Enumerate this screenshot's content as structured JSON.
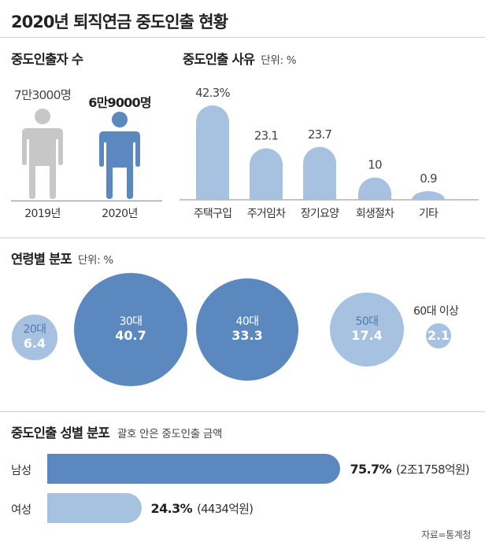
{
  "title": "2020년 퇴직연금 중도인출 현황",
  "source": "자료=통계청",
  "colors": {
    "dark_blue": "#5b89bf",
    "light_blue": "#a7c2e0",
    "gray": "#c7c7c7"
  },
  "count_section": {
    "title": "중도인출자 수",
    "items": [
      {
        "year": "2019년",
        "label": "7만3000명",
        "value": 73000,
        "icon": "person-icon",
        "color": "#c7c7c7"
      },
      {
        "year": "2020년",
        "label": "6만9000명",
        "value": 69000,
        "icon": "person-icon",
        "color": "#5b89bf"
      }
    ]
  },
  "chart_data": [
    {
      "type": "bar",
      "title": "중도인출 사유",
      "unit": "단위: %",
      "categories": [
        "주택구입",
        "주거임차",
        "장기요양",
        "회생절차",
        "기타"
      ],
      "values": [
        42.3,
        23.1,
        23.7,
        10,
        0.9
      ],
      "value_labels": [
        "42.3%",
        "23.1",
        "23.7",
        "10",
        "0.9"
      ]
    },
    {
      "type": "scatter",
      "title": "연령별 분포",
      "unit": "단위: %",
      "categories": [
        "20대",
        "30대",
        "40대",
        "50대",
        "60대 이상"
      ],
      "values": [
        6.4,
        40.7,
        33.3,
        17.4,
        2.1
      ],
      "value_labels": [
        "6.4",
        "40.7",
        "33.3",
        "17.4",
        "2.1"
      ]
    },
    {
      "type": "bar",
      "title": "중도인출 성별 분포",
      "note": "괄호 안은 중도인출 금액",
      "categories": [
        "남성",
        "여성"
      ],
      "values": [
        75.7,
        24.3
      ],
      "value_labels": [
        "75.7%",
        "24.3%"
      ],
      "amounts": [
        "(2조1758억원)",
        "(4434억원)"
      ]
    }
  ]
}
